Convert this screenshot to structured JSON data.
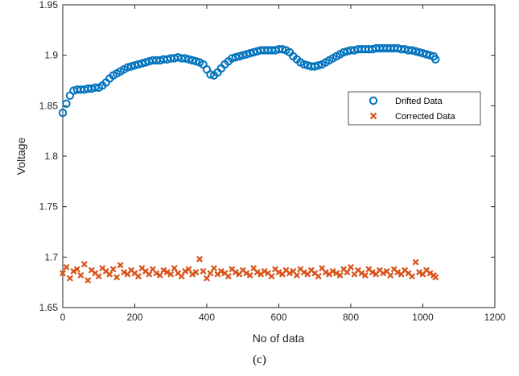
{
  "caption": "(c)",
  "chart_data": {
    "type": "scatter",
    "xlabel": "No of data",
    "ylabel": "Voltage",
    "xlim": [
      0,
      1200
    ],
    "ylim": [
      1.65,
      1.95
    ],
    "xticks": [
      0,
      200,
      400,
      600,
      800,
      1000,
      1200
    ],
    "xtick_labels": [
      "0",
      "200",
      "400",
      "600",
      "800",
      "1000",
      "1200"
    ],
    "yticks": [
      1.65,
      1.7,
      1.75,
      1.8,
      1.85,
      1.9,
      1.95
    ],
    "ytick_labels": [
      "1.65",
      "1.7",
      "1.75",
      "1.8",
      "1.85",
      "1.9",
      "1.95"
    ],
    "grid": false,
    "legend": "right-middle",
    "series": [
      {
        "name": "Drifted Data",
        "marker": "circle",
        "color": "#0072BD",
        "x": [
          0,
          10,
          20,
          30,
          40,
          50,
          60,
          70,
          80,
          90,
          100,
          110,
          120,
          130,
          140,
          150,
          160,
          170,
          180,
          190,
          200,
          210,
          220,
          230,
          240,
          250,
          260,
          270,
          280,
          290,
          300,
          310,
          320,
          330,
          340,
          350,
          360,
          370,
          380,
          390,
          400,
          410,
          420,
          430,
          440,
          450,
          460,
          470,
          480,
          490,
          500,
          510,
          520,
          530,
          540,
          550,
          560,
          570,
          580,
          590,
          600,
          610,
          620,
          630,
          640,
          650,
          660,
          670,
          680,
          690,
          700,
          710,
          720,
          730,
          740,
          750,
          760,
          770,
          780,
          790,
          800,
          810,
          820,
          830,
          840,
          850,
          860,
          870,
          880,
          890,
          900,
          910,
          920,
          930,
          940,
          950,
          960,
          970,
          980,
          990,
          1000,
          1010,
          1020,
          1030,
          1035
        ],
        "y": [
          1.843,
          1.852,
          1.86,
          1.865,
          1.866,
          1.866,
          1.866,
          1.867,
          1.867,
          1.868,
          1.868,
          1.87,
          1.873,
          1.877,
          1.88,
          1.882,
          1.884,
          1.886,
          1.888,
          1.889,
          1.89,
          1.891,
          1.892,
          1.893,
          1.894,
          1.895,
          1.895,
          1.895,
          1.896,
          1.896,
          1.897,
          1.897,
          1.898,
          1.897,
          1.897,
          1.896,
          1.895,
          1.894,
          1.893,
          1.891,
          1.886,
          1.881,
          1.88,
          1.883,
          1.887,
          1.891,
          1.894,
          1.897,
          1.898,
          1.899,
          1.9,
          1.901,
          1.902,
          1.903,
          1.904,
          1.905,
          1.905,
          1.905,
          1.905,
          1.905,
          1.906,
          1.906,
          1.905,
          1.903,
          1.899,
          1.896,
          1.893,
          1.891,
          1.89,
          1.889,
          1.889,
          1.89,
          1.891,
          1.893,
          1.895,
          1.897,
          1.899,
          1.901,
          1.903,
          1.904,
          1.905,
          1.905,
          1.906,
          1.906,
          1.906,
          1.906,
          1.906,
          1.907,
          1.907,
          1.907,
          1.907,
          1.907,
          1.907,
          1.907,
          1.906,
          1.906,
          1.905,
          1.905,
          1.904,
          1.903,
          1.902,
          1.901,
          1.9,
          1.899,
          1.896
        ]
      },
      {
        "name": "Corrected Data",
        "marker": "x",
        "color": "#D95319",
        "x": [
          0,
          10,
          20,
          30,
          40,
          50,
          60,
          70,
          80,
          90,
          100,
          110,
          120,
          130,
          140,
          150,
          160,
          170,
          180,
          190,
          200,
          210,
          220,
          230,
          240,
          250,
          260,
          270,
          280,
          290,
          300,
          310,
          320,
          330,
          340,
          350,
          360,
          370,
          380,
          390,
          400,
          410,
          420,
          430,
          440,
          450,
          460,
          470,
          480,
          490,
          500,
          510,
          520,
          530,
          540,
          550,
          560,
          570,
          580,
          590,
          600,
          610,
          620,
          630,
          640,
          650,
          660,
          670,
          680,
          690,
          700,
          710,
          720,
          730,
          740,
          750,
          760,
          770,
          780,
          790,
          800,
          810,
          820,
          830,
          840,
          850,
          860,
          870,
          880,
          890,
          900,
          910,
          920,
          930,
          940,
          950,
          960,
          970,
          980,
          990,
          1000,
          1010,
          1020,
          1030,
          1035
        ],
        "y": [
          1.684,
          1.69,
          1.679,
          1.686,
          1.688,
          1.682,
          1.693,
          1.677,
          1.687,
          1.684,
          1.681,
          1.689,
          1.686,
          1.683,
          1.688,
          1.68,
          1.692,
          1.685,
          1.683,
          1.687,
          1.684,
          1.681,
          1.689,
          1.686,
          1.683,
          1.688,
          1.684,
          1.682,
          1.687,
          1.685,
          1.683,
          1.689,
          1.684,
          1.681,
          1.686,
          1.688,
          1.683,
          1.685,
          1.698,
          1.686,
          1.679,
          1.684,
          1.689,
          1.683,
          1.686,
          1.684,
          1.681,
          1.688,
          1.685,
          1.683,
          1.687,
          1.684,
          1.682,
          1.689,
          1.685,
          1.683,
          1.686,
          1.684,
          1.681,
          1.688,
          1.685,
          1.683,
          1.687,
          1.684,
          1.686,
          1.682,
          1.688,
          1.685,
          1.683,
          1.687,
          1.684,
          1.681,
          1.689,
          1.685,
          1.683,
          1.686,
          1.684,
          1.682,
          1.688,
          1.685,
          1.69,
          1.683,
          1.687,
          1.684,
          1.682,
          1.688,
          1.685,
          1.683,
          1.687,
          1.684,
          1.686,
          1.682,
          1.688,
          1.685,
          1.683,
          1.687,
          1.684,
          1.681,
          1.695,
          1.685,
          1.683,
          1.687,
          1.684,
          1.682,
          1.68
        ]
      }
    ]
  }
}
